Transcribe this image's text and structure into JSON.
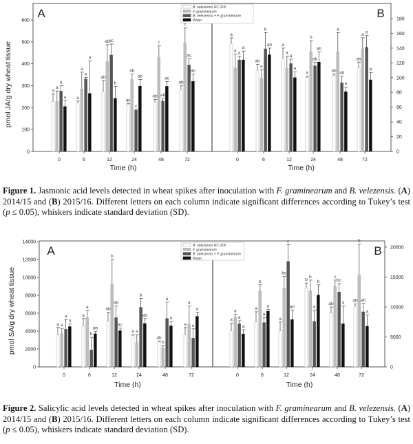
{
  "legend": [
    "B. velezensis RC 218",
    "F. graminearum",
    "B. velezensis + F. graminearum",
    "Water"
  ],
  "colors": {
    "B. velezensis RC 218": "#ffffff",
    "F. graminearum": "#bdbdbd",
    "B. velezensis + F. graminearum": "#555555",
    "Water": "#111111"
  },
  "figure1": {
    "label": "Figure 1.",
    "text1": " Jasmonic acid levels detected in wheat spikes after inoculation with ",
    "fg": "F. graminearum",
    "text2": " and ",
    "bv": "B. velezensis",
    "text3": ". (",
    "A": "A",
    "text4": ") 2014/15 and (",
    "B": "B",
    "text5": ") 2015/16. Different letters on each column indicate significant differences according to Tukey’s test (",
    "p": "p",
    "text6": " ≤ 0.05), whiskers indicate standard deviation (SD)."
  },
  "figure2": {
    "label": "Figure 2.",
    "text1": " Salicylic acid levels detected in wheat spikes after inoculation with ",
    "fg": "F. graminearum",
    "text2": " and ",
    "bv": "B. velezensis",
    "text3": ". (",
    "A": "A",
    "text4": ") 2014/15 and (",
    "B": "B",
    "text5": ") 2015/16. Different letters on each column indicate significant differences according to Tukey’s test (",
    "p": "p",
    "text6": " ≤ 0.05), whiskers indicate standard deviation (SD)."
  },
  "chart_data": [
    {
      "type": "bar",
      "panel": "A",
      "ylabel": "pmol JA/g dry wheat tissue",
      "xlabel": "Time (h)",
      "categories": [
        "0",
        "6",
        "12",
        "24",
        "48",
        "72"
      ],
      "ylim": [
        0,
        650
      ],
      "yticks": [
        0,
        100,
        200,
        300,
        400,
        500,
        600
      ],
      "yaxis": "left",
      "series": [
        {
          "name": "B. velezensis RC 218",
          "values": [
            228,
            222,
            272,
            215,
            225,
            280
          ],
          "sd": [
            35,
            8,
            52,
            4,
            12,
            20
          ],
          "letters": [
            "a",
            "a",
            "ab",
            "ac",
            "ab",
            "ab"
          ]
        },
        {
          "name": "F. graminearum",
          "values": [
            228,
            285,
            410,
            328,
            428,
            495
          ],
          "sd": [
            48,
            77,
            77,
            25,
            55,
            70
          ],
          "letters": [
            "a",
            "a",
            "ab",
            "ab",
            "c",
            "c"
          ]
        },
        {
          "name": "B. velezensis + F. graminearum",
          "values": [
            275,
            330,
            440,
            188,
            230,
            395
          ],
          "sd": [
            25,
            8,
            50,
            4,
            12,
            28
          ],
          "letters": [
            "a",
            "a",
            "ac",
            "c",
            "ab",
            "ac"
          ]
        },
        {
          "name": "Water",
          "values": [
            205,
            265,
            242,
            298,
            297,
            320
          ],
          "sd": [
            28,
            148,
            55,
            30,
            22,
            33
          ],
          "letters": [
            "a",
            "a",
            "b",
            "ab",
            "ac",
            "ab"
          ]
        }
      ]
    },
    {
      "type": "bar",
      "panel": "B",
      "ylabel": "",
      "xlabel": "Time (h)",
      "categories": [
        "0",
        "6",
        "12",
        "24",
        "48",
        "72"
      ],
      "ylim": [
        0,
        183
      ],
      "yticks": [
        0,
        20,
        40,
        60,
        80,
        100,
        120,
        140,
        160,
        180
      ],
      "yaxis": "right",
      "series": [
        {
          "name": "B. velezensis RC 218",
          "values": [
            146,
            110,
            126,
            100,
            103,
            113
          ],
          "sd": [
            8,
            8,
            14,
            2,
            2,
            8
          ],
          "letters": [
            "a",
            "ab",
            "a",
            "a",
            "ab",
            "ab"
          ]
        },
        {
          "name": "F. graminearum",
          "values": [
            113,
            99,
            112,
            135,
            135,
            139
          ],
          "sd": [
            19,
            12,
            17,
            15,
            26,
            15
          ],
          "letters": [
            "a",
            "a",
            "a",
            "b",
            "a",
            "a"
          ]
        },
        {
          "name": "B. velezensis + F. graminearum",
          "values": [
            124,
            139,
            119,
            116,
            93,
            141
          ],
          "sd": [
            5,
            22,
            6,
            5,
            9,
            16
          ],
          "letters": [
            "a",
            "b",
            "a",
            "ab",
            "ab",
            "a"
          ]
        },
        {
          "name": "Water",
          "values": [
            124,
            131,
            100,
            121,
            81,
            97
          ],
          "sd": [
            12,
            9,
            8,
            14,
            6,
            10
          ],
          "letters": [
            "a",
            "ab",
            "a",
            "ab",
            "b",
            "b"
          ]
        }
      ]
    },
    {
      "type": "bar",
      "panel": "A",
      "ylabel": "pmol SA/g dry wheat tissue",
      "xlabel": "Time (h)",
      "categories": [
        "0",
        "6",
        "12",
        "24",
        "48",
        "72"
      ],
      "ylim": [
        0,
        14000
      ],
      "yticks": [
        0,
        2000,
        4000,
        6000,
        8000,
        10000,
        12000,
        14000
      ],
      "yaxis": "left",
      "series": [
        {
          "name": "B. velezensis RC 218",
          "values": [
            3600,
            4600,
            5100,
            3500,
            2800,
            3600
          ],
          "sd": [
            800,
            800,
            1000,
            100,
            100,
            800
          ],
          "letters": [
            "a",
            "a",
            "ab",
            "a",
            "ab",
            "a"
          ]
        },
        {
          "name": "F. graminearum",
          "values": [
            3700,
            5500,
            9200,
            2700,
            2100,
            4800
          ],
          "sd": [
            600,
            800,
            2800,
            900,
            300,
            2000
          ],
          "letters": [
            "a",
            "a",
            "b",
            "a",
            "b",
            "a"
          ]
        },
        {
          "name": "B. velezensis + F. graminearum",
          "values": [
            4200,
            1900,
            5500,
            6650,
            5400,
            3200
          ],
          "sd": [
            1100,
            1400,
            1300,
            1000,
            1850,
            1050
          ],
          "letters": [
            "a",
            "b",
            "ab",
            "b",
            "a",
            "a"
          ]
        },
        {
          "name": "Water",
          "values": [
            4500,
            3700,
            4050,
            4850,
            4600,
            5650
          ],
          "sd": [
            300,
            250,
            300,
            550,
            500,
            450
          ],
          "letters": [
            "a",
            "ab",
            "ac",
            "ab",
            "a",
            "a"
          ]
        }
      ]
    },
    {
      "type": "bar",
      "panel": "B",
      "ylabel": "",
      "xlabel": "Time (h)",
      "categories": [
        "0",
        "6",
        "12",
        "24",
        "48",
        "72"
      ],
      "ylim": [
        0,
        20800
      ],
      "yticks": [
        0,
        5000,
        10000,
        15000,
        20000
      ],
      "yaxis": "right",
      "series": [
        {
          "name": "B. velezensis RC 218",
          "values": [
            6000,
            7500,
            6000,
            13200,
            9000,
            10100
          ],
          "sd": [
            1300,
            1700,
            1500,
            800,
            1000,
            400
          ],
          "letters": [
            "a",
            "a",
            "a",
            "b",
            "ab",
            "ab"
          ]
        },
        {
          "name": "F. graminearum",
          "values": [
            8300,
            12700,
            13100,
            12700,
            13500,
            15300
          ],
          "sd": [
            500,
            1000,
            2000,
            1800,
            1000,
            5200
          ],
          "letters": [
            "a",
            "b",
            "bc",
            "b",
            "c",
            "b"
          ]
        },
        {
          "name": "B. velezensis + F. graminearum",
          "values": [
            7200,
            7400,
            17600,
            7600,
            12500,
            9200
          ],
          "sd": [
            500,
            800,
            2800,
            1900,
            1400,
            1400
          ],
          "letters": [
            "a",
            "a",
            "c",
            "a",
            "bc",
            "ab"
          ]
        },
        {
          "name": "Water",
          "values": [
            5500,
            9300,
            7900,
            12000,
            7200,
            6800
          ],
          "sd": [
            700,
            300,
            1600,
            1700,
            3000,
            1900
          ],
          "letters": [
            "a",
            "a",
            "ab",
            "b",
            "a",
            "a"
          ]
        }
      ]
    }
  ]
}
